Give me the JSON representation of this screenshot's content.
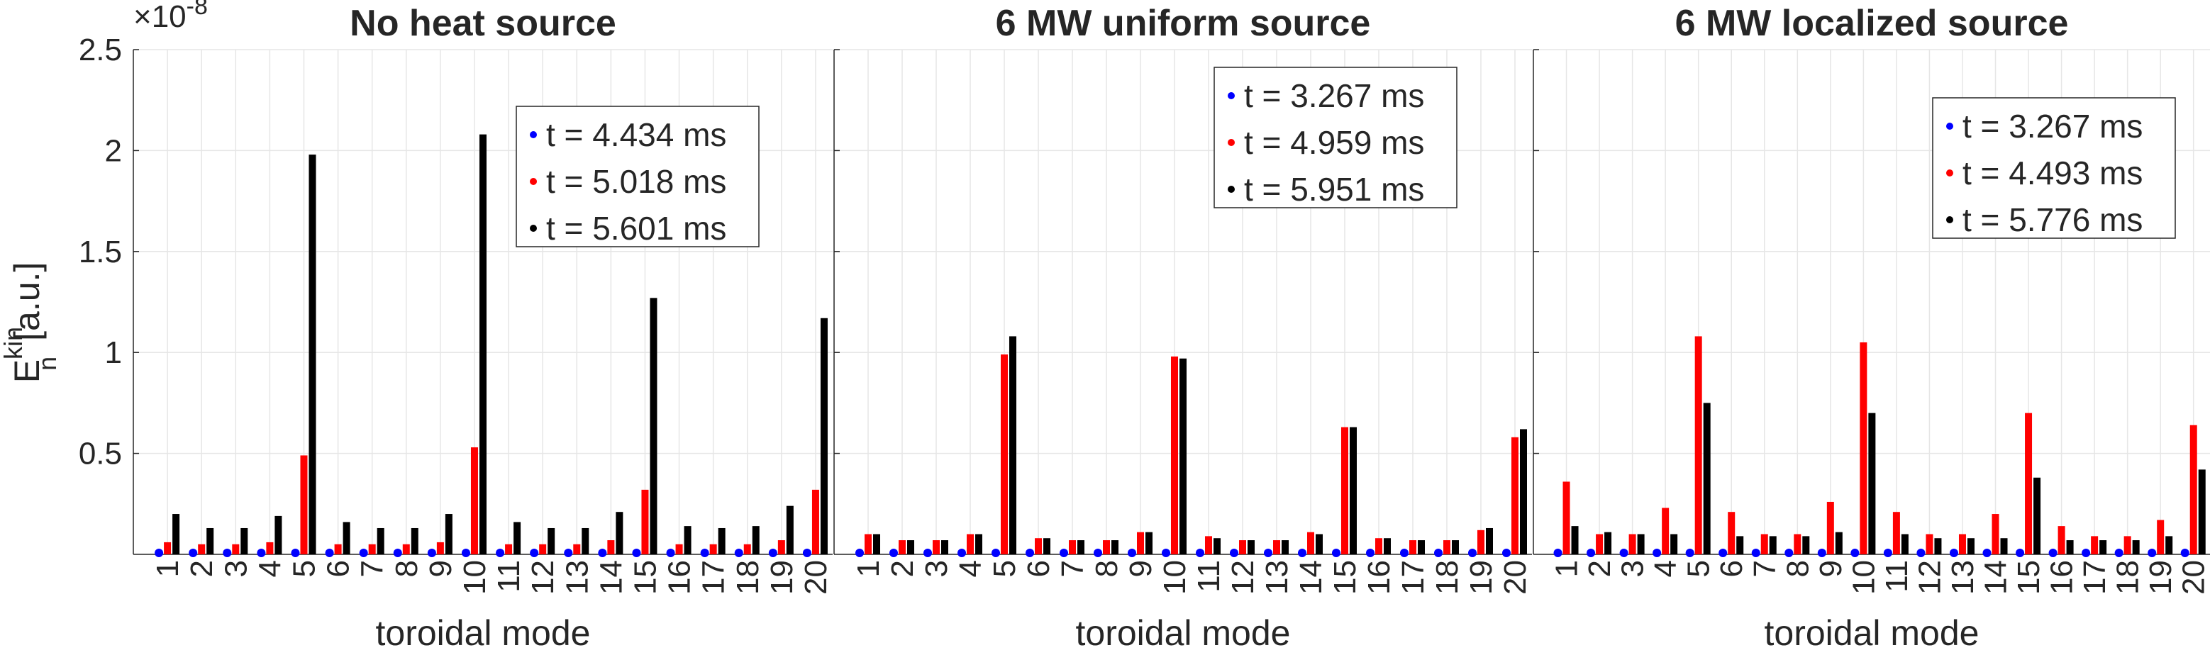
{
  "figure": {
    "y_exponent_prefix": "×10",
    "y_exponent_power": "-8",
    "ylabel_main": "E",
    "ylabel_sup": "kin",
    "ylabel_sub": "n",
    "ylabel_unit": "[a.u.]"
  },
  "chart_data": [
    {
      "type": "bar",
      "title": "No heat source",
      "xlabel": "toroidal mode",
      "ylabel": "E_n^kin [a.u.]",
      "y_scale_factor": "1e-8",
      "ylim": [
        0,
        2.5
      ],
      "yticks": [
        0.5,
        1,
        1.5,
        2,
        2.5
      ],
      "grid": true,
      "legend_position": "top-right",
      "categories": [
        1,
        2,
        3,
        4,
        5,
        6,
        7,
        8,
        9,
        10,
        11,
        12,
        13,
        14,
        15,
        16,
        17,
        18,
        19,
        20
      ],
      "series": [
        {
          "name": "t = 4.434 ms",
          "color": "#0000ff",
          "values": [
            0.003,
            0.003,
            0.003,
            0.003,
            0.003,
            0.003,
            0.003,
            0.003,
            0.003,
            0.004,
            0.003,
            0.003,
            0.003,
            0.003,
            0.004,
            0.003,
            0.003,
            0.003,
            0.003,
            0.004
          ]
        },
        {
          "name": "t = 5.018 ms",
          "color": "#ff0000",
          "values": [
            0.06,
            0.05,
            0.05,
            0.06,
            0.49,
            0.05,
            0.05,
            0.05,
            0.06,
            0.53,
            0.05,
            0.05,
            0.05,
            0.07,
            0.32,
            0.05,
            0.05,
            0.05,
            0.07,
            0.32
          ]
        },
        {
          "name": "t = 5.601 ms",
          "color": "#000000",
          "values": [
            0.2,
            0.13,
            0.13,
            0.19,
            1.98,
            0.16,
            0.13,
            0.13,
            0.2,
            2.08,
            0.16,
            0.13,
            0.13,
            0.21,
            1.27,
            0.14,
            0.13,
            0.14,
            0.24,
            1.17
          ]
        }
      ]
    },
    {
      "type": "bar",
      "title": "6 MW uniform source",
      "xlabel": "toroidal mode",
      "ylabel": "",
      "y_scale_factor": "1e-8",
      "ylim": [
        0,
        2.5
      ],
      "grid": true,
      "legend_position": "top-right",
      "categories": [
        1,
        2,
        3,
        4,
        5,
        6,
        7,
        8,
        9,
        10,
        11,
        12,
        13,
        14,
        15,
        16,
        17,
        18,
        19,
        20
      ],
      "series": [
        {
          "name": "t = 3.267 ms",
          "color": "#0000ff",
          "values": [
            0.003,
            0.003,
            0.003,
            0.003,
            0.003,
            0.003,
            0.003,
            0.003,
            0.003,
            0.003,
            0.003,
            0.003,
            0.003,
            0.003,
            0.003,
            0.003,
            0.003,
            0.003,
            0.003,
            0.003
          ]
        },
        {
          "name": "t = 4.959 ms",
          "color": "#ff0000",
          "values": [
            0.1,
            0.07,
            0.07,
            0.1,
            0.99,
            0.08,
            0.07,
            0.07,
            0.11,
            0.98,
            0.09,
            0.07,
            0.07,
            0.11,
            0.63,
            0.08,
            0.07,
            0.07,
            0.12,
            0.58
          ]
        },
        {
          "name": "t = 5.951 ms",
          "color": "#000000",
          "values": [
            0.1,
            0.07,
            0.07,
            0.1,
            1.08,
            0.08,
            0.07,
            0.07,
            0.11,
            0.97,
            0.08,
            0.07,
            0.07,
            0.1,
            0.63,
            0.08,
            0.07,
            0.07,
            0.13,
            0.62
          ]
        }
      ]
    },
    {
      "type": "bar",
      "title": "6 MW localized source",
      "xlabel": "toroidal mode",
      "ylabel": "",
      "y_scale_factor": "1e-8",
      "ylim": [
        0,
        2.5
      ],
      "grid": true,
      "legend_position": "top-right",
      "categories": [
        1,
        2,
        3,
        4,
        5,
        6,
        7,
        8,
        9,
        10,
        11,
        12,
        13,
        14,
        15,
        16,
        17,
        18,
        19,
        20
      ],
      "series": [
        {
          "name": "t = 3.267 ms",
          "color": "#0000ff",
          "values": [
            0.003,
            0.003,
            0.003,
            0.003,
            0.003,
            0.003,
            0.003,
            0.003,
            0.003,
            0.003,
            0.003,
            0.003,
            0.003,
            0.003,
            0.003,
            0.003,
            0.003,
            0.003,
            0.003,
            0.003
          ]
        },
        {
          "name": "t = 4.493 ms",
          "color": "#ff0000",
          "values": [
            0.36,
            0.1,
            0.1,
            0.23,
            1.08,
            0.21,
            0.1,
            0.1,
            0.26,
            1.05,
            0.21,
            0.1,
            0.1,
            0.2,
            0.7,
            0.14,
            0.09,
            0.09,
            0.17,
            0.64
          ]
        },
        {
          "name": "t = 5.776 ms",
          "color": "#000000",
          "values": [
            0.14,
            0.11,
            0.1,
            0.1,
            0.75,
            0.09,
            0.09,
            0.09,
            0.11,
            0.7,
            0.1,
            0.08,
            0.08,
            0.08,
            0.38,
            0.07,
            0.07,
            0.07,
            0.09,
            0.42
          ]
        }
      ]
    }
  ]
}
